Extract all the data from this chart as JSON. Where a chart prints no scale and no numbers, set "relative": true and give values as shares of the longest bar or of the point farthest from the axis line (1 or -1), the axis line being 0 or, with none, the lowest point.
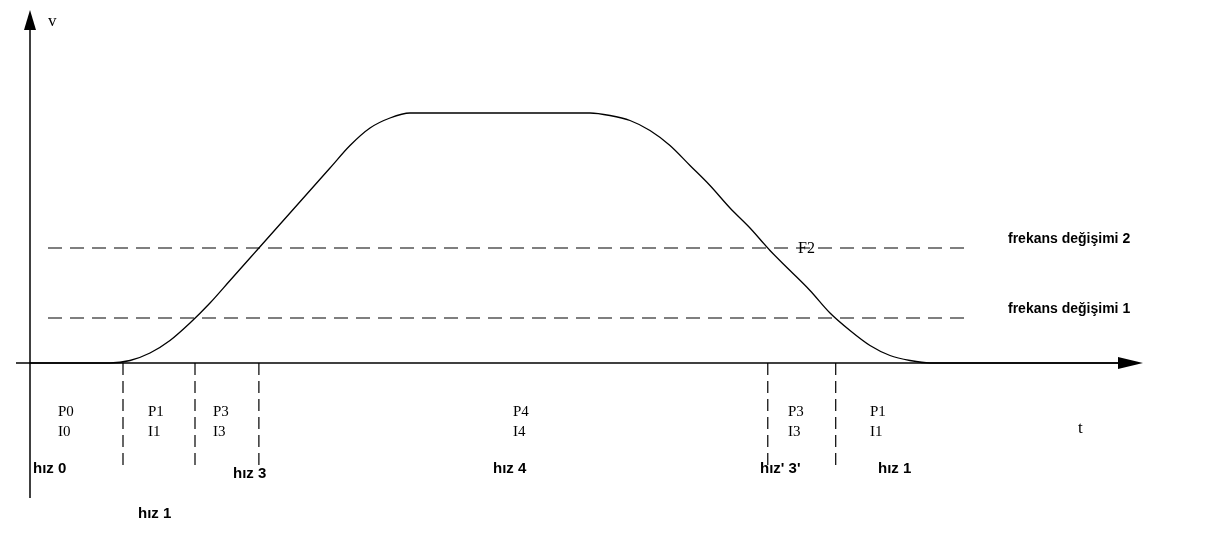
{
  "chart_data": {
    "type": "line",
    "relative": true,
    "xlabel": "t",
    "ylabel": "v",
    "marker": "none",
    "line_style": "solid",
    "categories": [
      null,
      null,
      null,
      null,
      null,
      null,
      null,
      null,
      null,
      null,
      null,
      null,
      null,
      null,
      null,
      null,
      null,
      null,
      null,
      null,
      null,
      null,
      null,
      null,
      null,
      null,
      null,
      null,
      null,
      null,
      null,
      null,
      null,
      null,
      null,
      null,
      null,
      null,
      null,
      null,
      null,
      null,
      null,
      null,
      null,
      null,
      null,
      null,
      null,
      null,
      null,
      null,
      null,
      null,
      null,
      null
    ],
    "series": [
      {
        "color": "#000000",
        "values": [
          0,
          0,
          0,
          0,
          0,
          0.01,
          0.04,
          0.09,
          0.16,
          0.24,
          0.33,
          0.42,
          0.51,
          0.6,
          0.69,
          0.78,
          0.87,
          0.94,
          0.98,
          1,
          1,
          1,
          1,
          1,
          1,
          1,
          1,
          1,
          1,
          0.99,
          0.97,
          0.93,
          0.87,
          0.79,
          0.71,
          0.62,
          0.54,
          0.45,
          0.37,
          0.29,
          0.2,
          0.13,
          0.07,
          0.03,
          0.01,
          0,
          0,
          0,
          0,
          0,
          0,
          0,
          0,
          0,
          0,
          0
        ]
      }
    ],
    "ref_lines": [
      {
        "axis": "y",
        "value": 0.46,
        "label": "frekans değişimi 2",
        "color": "#000000",
        "line_style": "dashed"
      },
      {
        "axis": "y",
        "value": 0.18,
        "label": "frekans değişimi 1",
        "color": "#000000",
        "line_style": "dashed"
      }
    ],
    "annotations": [
      "F2",
      "P0\nI0",
      "P1\nI1",
      "P3\nI3",
      "P4\nI4",
      "P3\nI3",
      "P1\nI1",
      "hız 0",
      "hız 1",
      "hız 3",
      "hız 4",
      "hız' 3'",
      "hız 1"
    ]
  }
}
